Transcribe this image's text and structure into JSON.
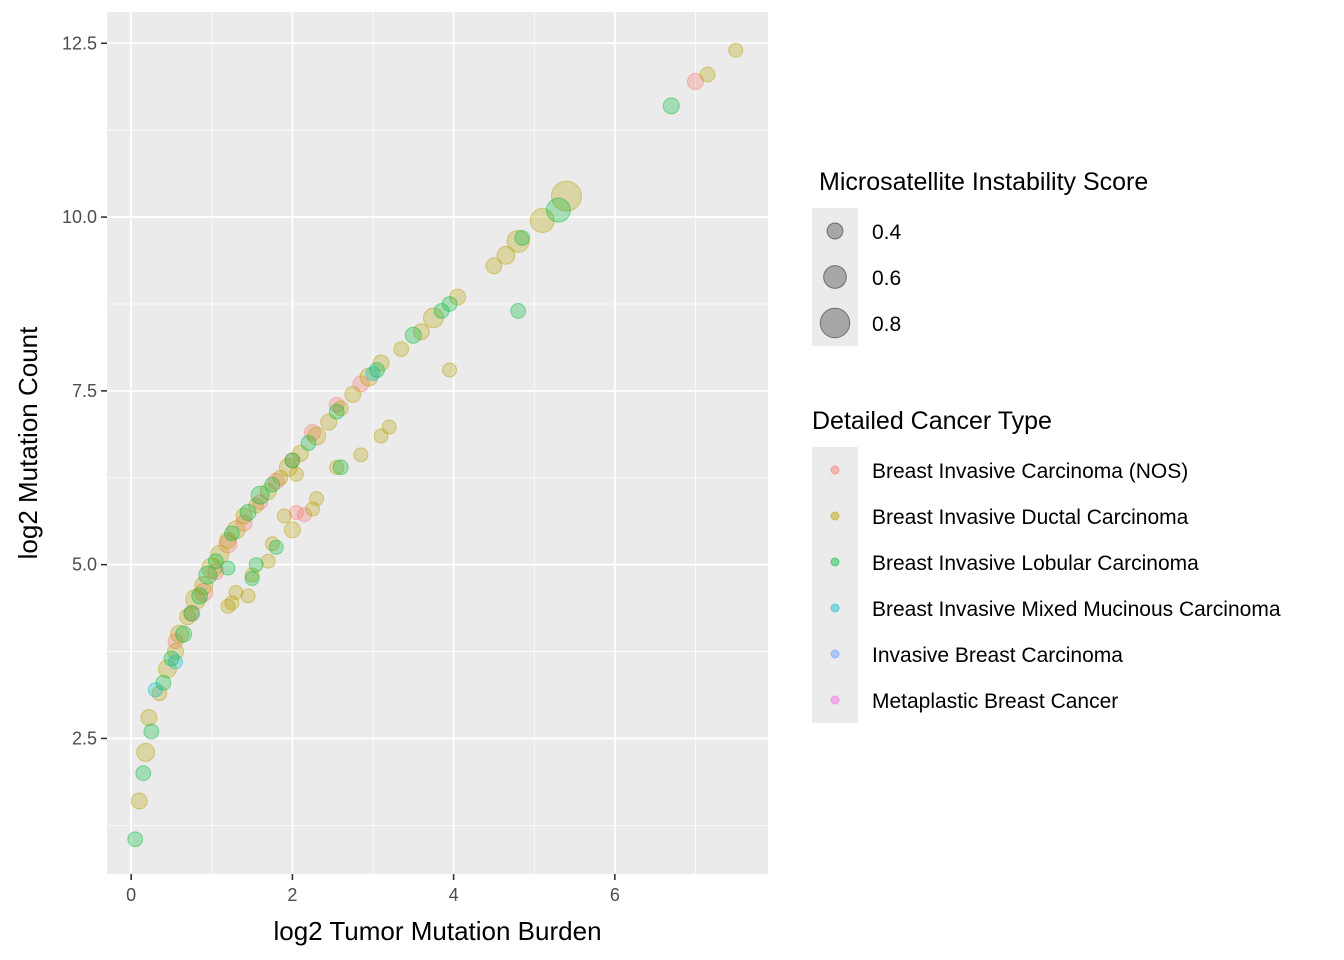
{
  "chart_data": {
    "type": "scatter",
    "xlabel": "log2 Tumor Mutation Burden",
    "ylabel": "log2 Mutation Count",
    "xlim": [
      -0.3,
      7.9
    ],
    "ylim": [
      0.55,
      12.95
    ],
    "x_ticks": [
      0,
      2,
      4,
      6
    ],
    "x_tick_labels": [
      "0",
      "2",
      "4",
      "6"
    ],
    "y_ticks": [
      2.5,
      5.0,
      7.5,
      10.0,
      12.5
    ],
    "y_tick_labels": [
      "2.5",
      "5.0",
      "7.5",
      "10.0",
      "12.5"
    ],
    "grid": true,
    "legend_position": "right",
    "size_legend": {
      "title": "Microsatellite Instability Score",
      "values": [
        0.4,
        0.6,
        0.8
      ],
      "labels": [
        "0.4",
        "0.6",
        "0.8"
      ]
    },
    "color_legend": {
      "title": "Detailed Cancer Type",
      "entries": [
        {
          "label": "Breast Invasive Carcinoma (NOS)",
          "color": "#F8766D"
        },
        {
          "label": "Breast Invasive Ductal Carcinoma",
          "color": "#B79F00"
        },
        {
          "label": "Breast Invasive Lobular Carcinoma",
          "color": "#00BA38"
        },
        {
          "label": "Breast Invasive Mixed Mucinous Carcinoma",
          "color": "#00BFC4"
        },
        {
          "label": "Invasive Breast Carcinoma",
          "color": "#619CFF"
        },
        {
          "label": "Metaplastic Breast Cancer",
          "color": "#F564E3"
        }
      ]
    },
    "point_alpha": 0.3,
    "series": [
      {
        "name": "Breast Invasive Carcinoma (NOS)",
        "color": "#F8766D",
        "points": [
          [
            0.55,
            3.9,
            0.42
          ],
          [
            0.75,
            4.3,
            0.45
          ],
          [
            0.9,
            4.6,
            0.5
          ],
          [
            1.05,
            4.9,
            0.45
          ],
          [
            1.2,
            5.3,
            0.5
          ],
          [
            1.4,
            5.6,
            0.45
          ],
          [
            1.6,
            5.9,
            0.42
          ],
          [
            1.8,
            6.2,
            0.45
          ],
          [
            2.0,
            6.5,
            0.42
          ],
          [
            2.25,
            6.9,
            0.45
          ],
          [
            2.55,
            7.3,
            0.42
          ],
          [
            2.85,
            7.6,
            0.45
          ],
          [
            2.05,
            5.75,
            0.4
          ],
          [
            2.15,
            5.72,
            0.4
          ],
          [
            7.0,
            11.95,
            0.45
          ]
        ]
      },
      {
        "name": "Breast Invasive Ductal Carcinoma",
        "color": "#B79F00",
        "points": [
          [
            0.1,
            1.6,
            0.45
          ],
          [
            0.18,
            2.3,
            0.5
          ],
          [
            0.22,
            2.8,
            0.45
          ],
          [
            0.35,
            3.15,
            0.42
          ],
          [
            0.45,
            3.5,
            0.5
          ],
          [
            0.55,
            3.75,
            0.45
          ],
          [
            0.6,
            4.0,
            0.5
          ],
          [
            0.7,
            4.25,
            0.45
          ],
          [
            0.8,
            4.5,
            0.55
          ],
          [
            0.9,
            4.7,
            0.5
          ],
          [
            1.0,
            4.95,
            0.55
          ],
          [
            1.1,
            5.15,
            0.5
          ],
          [
            1.2,
            5.35,
            0.45
          ],
          [
            1.3,
            5.5,
            0.5
          ],
          [
            1.4,
            5.7,
            0.45
          ],
          [
            1.55,
            5.85,
            0.42
          ],
          [
            1.7,
            6.05,
            0.45
          ],
          [
            1.85,
            6.25,
            0.42
          ],
          [
            1.95,
            6.4,
            0.5
          ],
          [
            2.1,
            6.6,
            0.45
          ],
          [
            2.3,
            6.85,
            0.5
          ],
          [
            2.45,
            7.05,
            0.45
          ],
          [
            2.6,
            7.25,
            0.42
          ],
          [
            2.75,
            7.45,
            0.45
          ],
          [
            2.95,
            7.7,
            0.5
          ],
          [
            3.1,
            7.9,
            0.45
          ],
          [
            3.35,
            8.1,
            0.42
          ],
          [
            3.6,
            8.35,
            0.45
          ],
          [
            3.75,
            8.55,
            0.55
          ],
          [
            4.05,
            8.85,
            0.45
          ],
          [
            4.5,
            9.3,
            0.45
          ],
          [
            4.65,
            9.45,
            0.5
          ],
          [
            4.8,
            9.65,
            0.6
          ],
          [
            5.1,
            9.95,
            0.65
          ],
          [
            5.4,
            10.3,
            0.8
          ],
          [
            3.95,
            7.8,
            0.4
          ],
          [
            3.1,
            6.85,
            0.4
          ],
          [
            3.2,
            6.98,
            0.4
          ],
          [
            2.85,
            6.58,
            0.4
          ],
          [
            2.55,
            6.4,
            0.4
          ],
          [
            2.05,
            6.3,
            0.4
          ],
          [
            2.0,
            5.5,
            0.45
          ],
          [
            1.9,
            5.7,
            0.4
          ],
          [
            2.3,
            5.95,
            0.4
          ],
          [
            2.25,
            5.8,
            0.4
          ],
          [
            1.75,
            5.3,
            0.4
          ],
          [
            1.7,
            5.05,
            0.4
          ],
          [
            1.5,
            4.85,
            0.4
          ],
          [
            1.3,
            4.6,
            0.4
          ],
          [
            1.25,
            4.45,
            0.4
          ],
          [
            1.2,
            4.4,
            0.4
          ],
          [
            1.45,
            4.55,
            0.4
          ],
          [
            7.15,
            12.05,
            0.42
          ],
          [
            7.5,
            12.4,
            0.4
          ]
        ]
      },
      {
        "name": "Breast Invasive Lobular Carcinoma",
        "color": "#00BA38",
        "points": [
          [
            0.05,
            1.05,
            0.42
          ],
          [
            0.15,
            2.0,
            0.42
          ],
          [
            0.25,
            2.6,
            0.42
          ],
          [
            0.4,
            3.3,
            0.42
          ],
          [
            0.5,
            3.65,
            0.42
          ],
          [
            0.65,
            4.0,
            0.45
          ],
          [
            0.75,
            4.3,
            0.42
          ],
          [
            0.85,
            4.55,
            0.45
          ],
          [
            0.95,
            4.85,
            0.5
          ],
          [
            1.05,
            5.05,
            0.42
          ],
          [
            1.25,
            5.45,
            0.42
          ],
          [
            1.45,
            5.75,
            0.45
          ],
          [
            1.6,
            6.0,
            0.5
          ],
          [
            1.75,
            6.15,
            0.42
          ],
          [
            2.0,
            6.5,
            0.42
          ],
          [
            2.2,
            6.75,
            0.42
          ],
          [
            2.55,
            7.2,
            0.42
          ],
          [
            3.05,
            7.8,
            0.42
          ],
          [
            3.5,
            8.3,
            0.45
          ],
          [
            3.85,
            8.65,
            0.42
          ],
          [
            3.95,
            8.75,
            0.42
          ],
          [
            4.85,
            9.7,
            0.42
          ],
          [
            5.3,
            10.1,
            0.65
          ],
          [
            4.8,
            8.65,
            0.42
          ],
          [
            2.6,
            6.4,
            0.42
          ],
          [
            1.8,
            5.25,
            0.4
          ],
          [
            1.55,
            5.0,
            0.4
          ],
          [
            1.5,
            4.8,
            0.4
          ],
          [
            1.2,
            4.95,
            0.4
          ],
          [
            6.7,
            11.6,
            0.45
          ]
        ]
      },
      {
        "name": "Breast Invasive Mixed Mucinous Carcinoma",
        "color": "#00BFC4",
        "points": [
          [
            0.3,
            3.2,
            0.4
          ],
          [
            0.55,
            3.6,
            0.4
          ],
          [
            3.0,
            7.75,
            0.4
          ]
        ]
      }
    ]
  }
}
